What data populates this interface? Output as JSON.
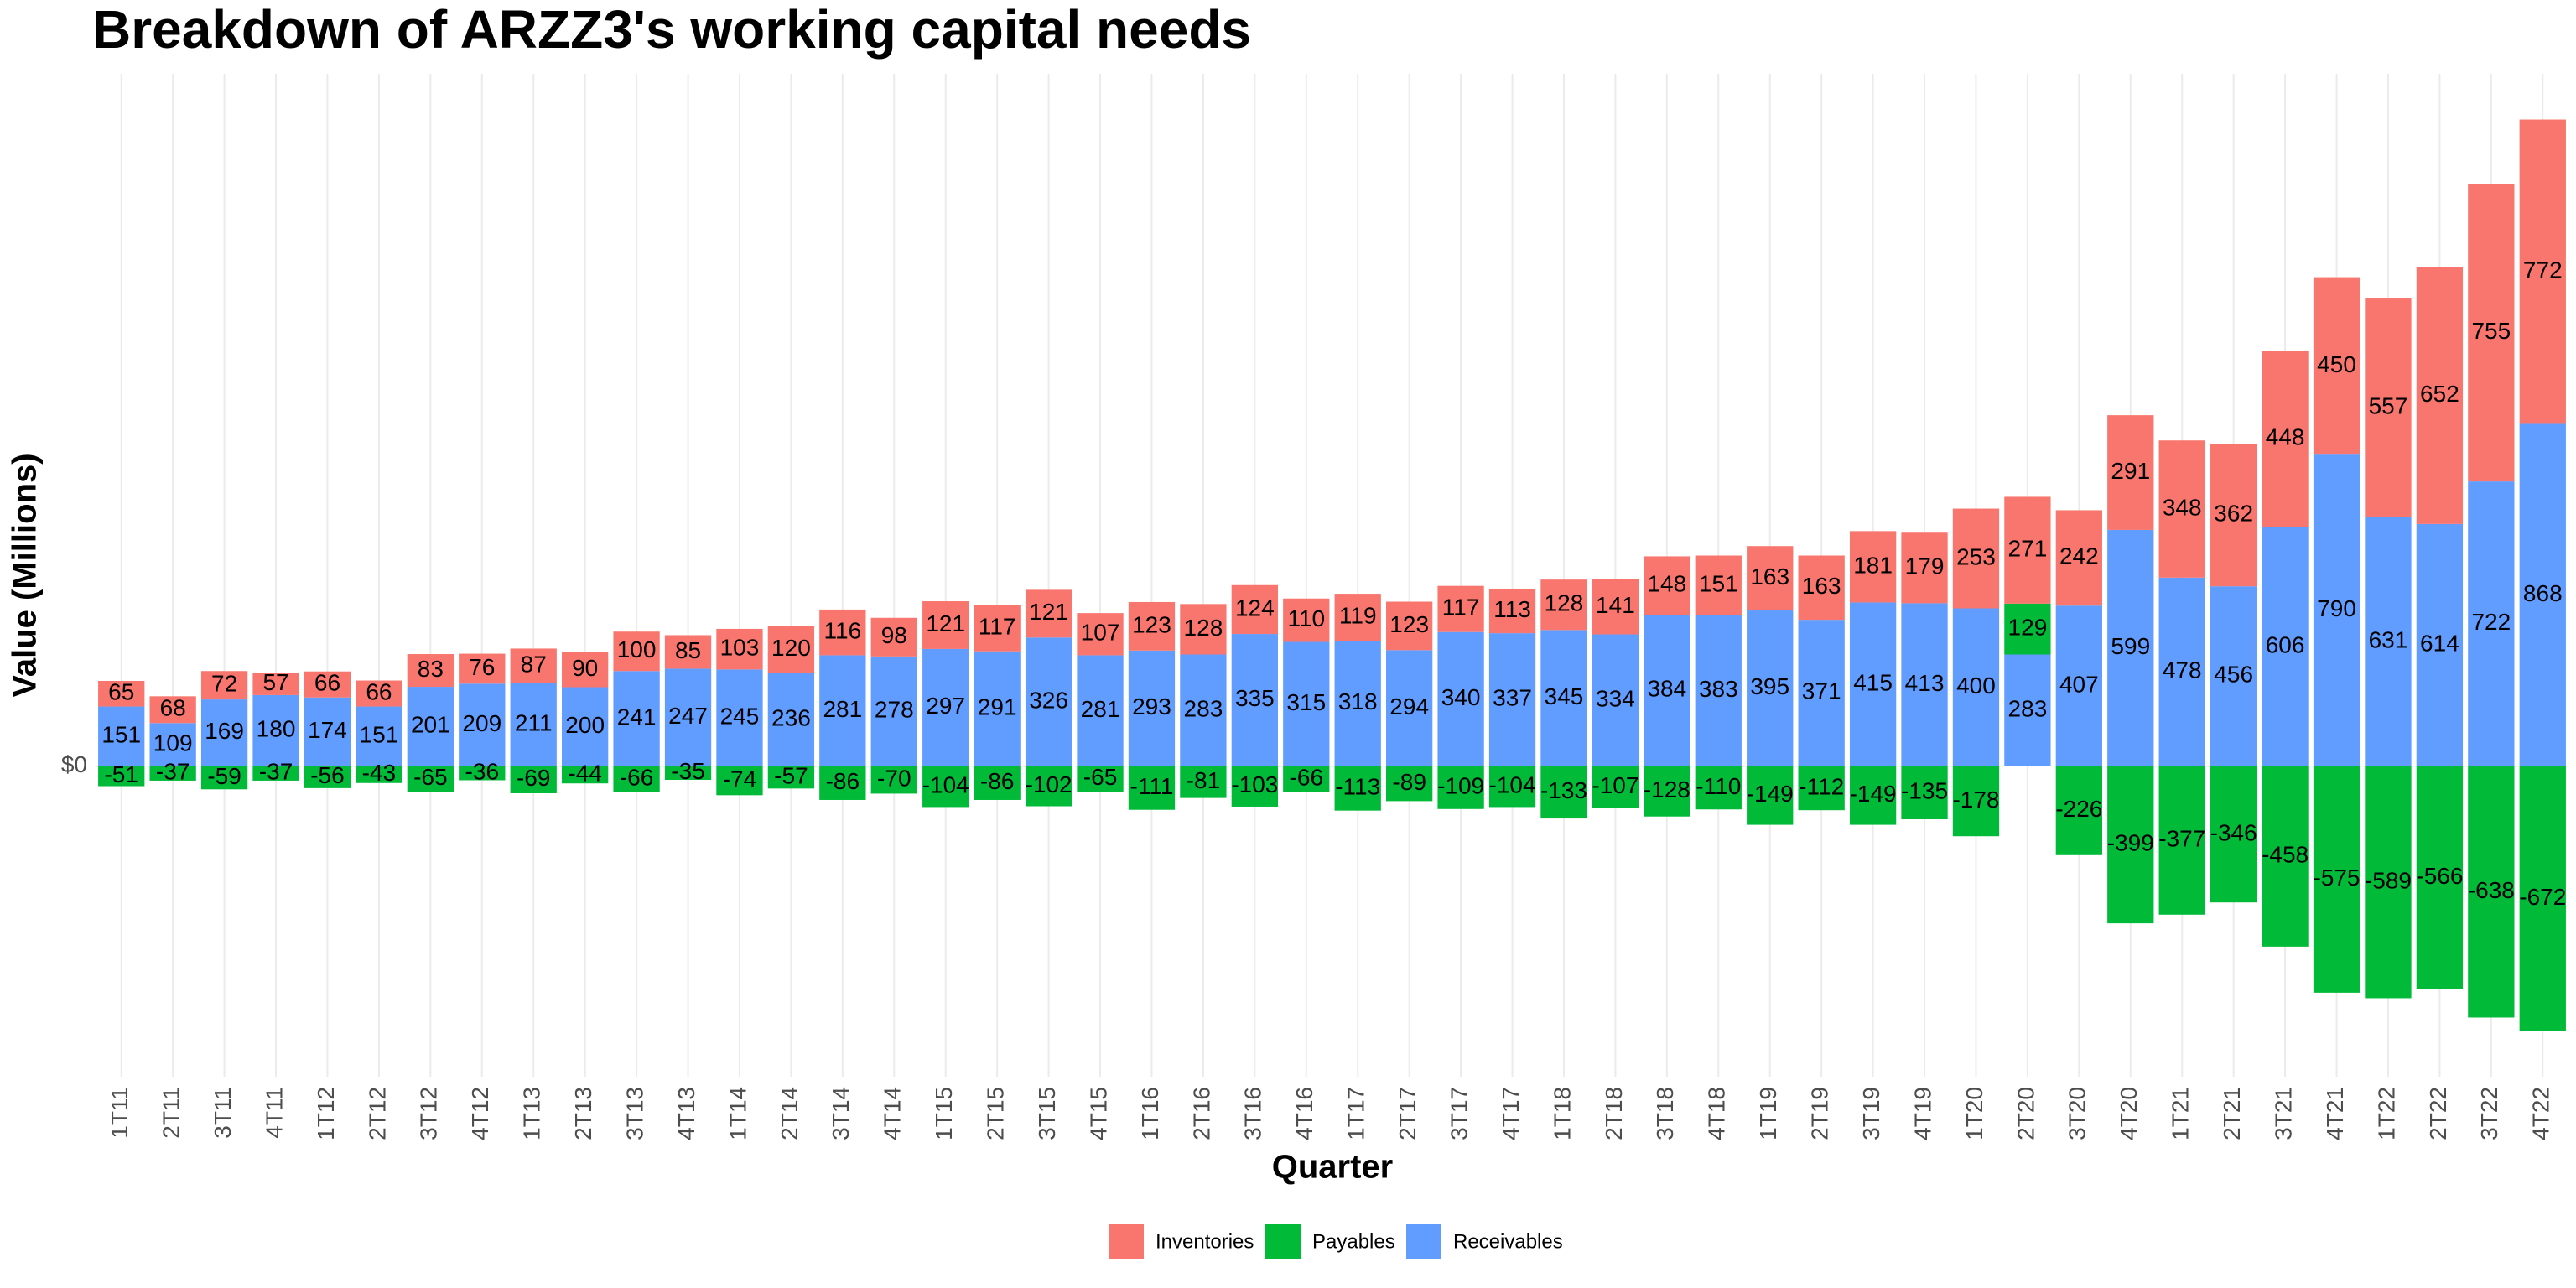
{
  "chart_data": {
    "type": "stacked_bar",
    "title": "Breakdown of ARZZ3's working capital needs",
    "x_label": "Quarter",
    "y_label": "Value (Millions)",
    "categories": [
      "1T11",
      "2T11",
      "3T11",
      "4T11",
      "1T12",
      "2T12",
      "3T12",
      "4T12",
      "1T13",
      "2T13",
      "3T13",
      "4T13",
      "1T14",
      "2T14",
      "3T14",
      "4T14",
      "1T15",
      "2T15",
      "3T15",
      "4T15",
      "1T16",
      "2T16",
      "3T16",
      "4T16",
      "1T17",
      "2T17",
      "3T17",
      "4T17",
      "1T18",
      "2T18",
      "3T18",
      "4T18",
      "1T19",
      "2T19",
      "3T19",
      "4T19",
      "1T20",
      "2T20",
      "3T20",
      "4T20",
      "1T21",
      "2T21",
      "3T21",
      "4T21",
      "1T22",
      "2T22",
      "3T22",
      "4T22"
    ],
    "series": [
      {
        "name": "Inventories",
        "color": "#F8766D",
        "values": [
          65,
          68,
          72,
          57,
          66,
          66,
          83,
          76,
          87,
          90,
          100,
          85,
          103,
          120,
          116,
          98,
          121,
          117,
          121,
          107,
          123,
          128,
          124,
          110,
          119,
          123,
          117,
          113,
          128,
          141,
          148,
          151,
          163,
          163,
          181,
          179,
          253,
          271,
          242,
          291,
          348,
          362,
          448,
          450,
          557,
          652,
          755,
          772
        ]
      },
      {
        "name": "Payables",
        "color": "#00BA38",
        "values": [
          -51,
          -37,
          -59,
          -37,
          -56,
          -43,
          -65,
          -36,
          -69,
          -44,
          -66,
          -35,
          -74,
          -57,
          -86,
          -70,
          -104,
          -86,
          -102,
          -65,
          -111,
          -81,
          -103,
          -66,
          -113,
          -89,
          -109,
          -104,
          -133,
          -107,
          -128,
          -110,
          -149,
          -112,
          -149,
          -135,
          -178,
          129,
          -226,
          -399,
          -377,
          -346,
          -458,
          -575,
          -589,
          -566,
          -638,
          -672
        ]
      },
      {
        "name": "Receivables",
        "color": "#619CFF",
        "values": [
          151,
          109,
          169,
          180,
          174,
          151,
          201,
          209,
          211,
          200,
          241,
          247,
          245,
          236,
          281,
          278,
          297,
          291,
          326,
          281,
          293,
          283,
          335,
          315,
          318,
          294,
          340,
          337,
          345,
          334,
          384,
          383,
          395,
          371,
          415,
          413,
          400,
          283,
          407,
          599,
          478,
          456,
          606,
          790,
          631,
          614,
          722,
          868
        ]
      }
    ],
    "stack_order": [
      "Receivables",
      "Payables",
      "Inventories"
    ],
    "ylim": [
      -788,
      1756
    ],
    "yticks": [
      {
        "value": 0,
        "label": "$0"
      }
    ],
    "grid": "x",
    "legend": "bottom"
  }
}
